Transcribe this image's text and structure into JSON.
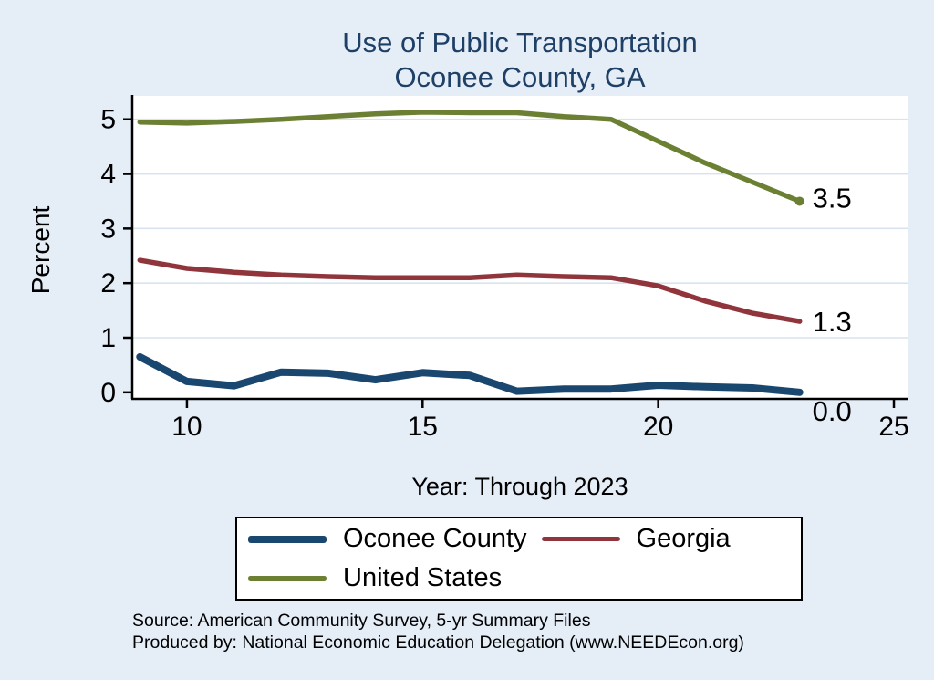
{
  "title": {
    "line1": "Use of Public Transportation",
    "line2": "Oconee County, GA"
  },
  "axis": {
    "y_label": "Percent",
    "x_label": "Year: Through 2023"
  },
  "source": {
    "line1": "Source: American Community Survey, 5-yr Summary Files",
    "line2": "Produced by: National Economic Education Delegation (www.NEEDEcon.org)"
  },
  "colors": {
    "background": "#e5edf7",
    "plot_bg": "#ffffff",
    "grid": "#d8e3f0",
    "axis": "#000000",
    "title": "#1e3f66"
  },
  "chart_data": {
    "type": "line",
    "x": [
      9,
      10,
      11,
      12,
      13,
      14,
      15,
      16,
      17,
      18,
      19,
      20,
      21,
      22,
      23
    ],
    "x_ticks": [
      10,
      15,
      20,
      25
    ],
    "y_ticks": [
      0,
      1,
      2,
      3,
      4,
      5
    ],
    "xlim": [
      8.84,
      25.29
    ],
    "ylim": [
      -0.12,
      5.43
    ],
    "grid": "horizontal-only",
    "legend_position": "bottom",
    "series": [
      {
        "name": "Oconee County",
        "color": "#1a476f",
        "width": 8,
        "values": [
          0.65,
          0.2,
          0.12,
          0.37,
          0.35,
          0.23,
          0.36,
          0.31,
          0.02,
          0.06,
          0.06,
          0.13,
          0.1,
          0.08,
          0.0
        ],
        "end_label": "0.0",
        "label_dy": 20,
        "end_dot": false
      },
      {
        "name": "Georgia",
        "color": "#90353b",
        "width": 5.5,
        "values": [
          2.42,
          2.27,
          2.2,
          2.15,
          2.12,
          2.1,
          2.1,
          2.1,
          2.15,
          2.12,
          2.1,
          1.95,
          1.67,
          1.45,
          1.3
        ],
        "end_label": "1.3",
        "label_dy": 0,
        "end_dot": false
      },
      {
        "name": "United States",
        "color": "#6b8033",
        "width": 5.5,
        "values": [
          4.95,
          4.93,
          4.96,
          5.0,
          5.05,
          5.1,
          5.13,
          5.12,
          5.12,
          5.05,
          5.0,
          4.6,
          4.2,
          3.85,
          3.5
        ],
        "end_label": "3.5",
        "label_dy": -4,
        "end_dot": true
      }
    ]
  }
}
